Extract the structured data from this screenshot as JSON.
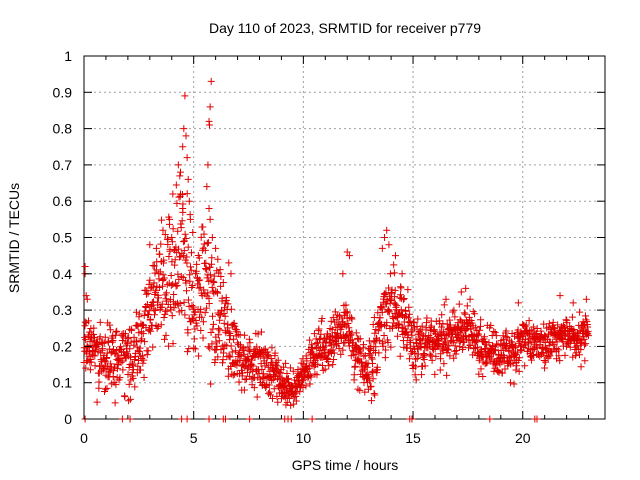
{
  "chart_data": {
    "type": "scatter",
    "title": "Day 110 of 2023, SRMTID for receiver p779",
    "xlabel": "GPS time / hours",
    "ylabel": "SRMTID / TECUs",
    "xlim": [
      0,
      23.75
    ],
    "ylim": [
      0,
      1
    ],
    "xticks": [
      0,
      5,
      10,
      15,
      20
    ],
    "yticks": [
      0,
      0.1,
      0.2,
      0.3,
      0.4,
      0.5,
      0.6,
      0.7,
      0.8,
      0.9,
      1
    ],
    "xtick_labels": [
      "0",
      "5",
      "10",
      "15",
      "20"
    ],
    "ytick_labels": [
      "0",
      "0.1",
      "0.2",
      "0.3",
      "0.4",
      "0.5",
      "0.6",
      "0.7",
      "0.8",
      "0.9",
      "1"
    ],
    "grid": true,
    "marker": "plus",
    "color": "#e00000",
    "series": [
      {
        "name": "SRMTID",
        "profile": [
          [
            0.0,
            0.22
          ],
          [
            0.5,
            0.18
          ],
          [
            1.0,
            0.15
          ],
          [
            1.5,
            0.17
          ],
          [
            2.0,
            0.16
          ],
          [
            2.5,
            0.2
          ],
          [
            3.0,
            0.3
          ],
          [
            3.5,
            0.38
          ],
          [
            4.0,
            0.4
          ],
          [
            4.5,
            0.45
          ],
          [
            5.0,
            0.32
          ],
          [
            5.5,
            0.35
          ],
          [
            6.0,
            0.3
          ],
          [
            6.5,
            0.24
          ],
          [
            7.0,
            0.18
          ],
          [
            7.5,
            0.16
          ],
          [
            8.0,
            0.15
          ],
          [
            8.5,
            0.14
          ],
          [
            9.0,
            0.1
          ],
          [
            9.5,
            0.08
          ],
          [
            10.0,
            0.12
          ],
          [
            10.5,
            0.17
          ],
          [
            11.0,
            0.2
          ],
          [
            11.5,
            0.23
          ],
          [
            12.0,
            0.26
          ],
          [
            12.5,
            0.15
          ],
          [
            13.0,
            0.12
          ],
          [
            13.5,
            0.25
          ],
          [
            14.0,
            0.32
          ],
          [
            14.5,
            0.3
          ],
          [
            15.0,
            0.2
          ],
          [
            15.5,
            0.21
          ],
          [
            16.0,
            0.22
          ],
          [
            16.5,
            0.22
          ],
          [
            17.0,
            0.24
          ],
          [
            17.5,
            0.26
          ],
          [
            18.0,
            0.2
          ],
          [
            18.5,
            0.19
          ],
          [
            19.0,
            0.18
          ],
          [
            19.5,
            0.17
          ],
          [
            20.0,
            0.22
          ],
          [
            20.5,
            0.21
          ],
          [
            21.0,
            0.2
          ],
          [
            21.5,
            0.22
          ],
          [
            22.0,
            0.22
          ],
          [
            22.5,
            0.23
          ],
          [
            23.0,
            0.23
          ]
        ],
        "spread": [
          [
            0.0,
            0.07
          ],
          [
            3.0,
            0.1
          ],
          [
            4.5,
            0.2
          ],
          [
            5.8,
            0.18
          ],
          [
            7.0,
            0.08
          ],
          [
            9.5,
            0.04
          ],
          [
            12.0,
            0.07
          ],
          [
            14.0,
            0.1
          ],
          [
            16.0,
            0.06
          ],
          [
            23.0,
            0.05
          ]
        ],
        "peaks": [
          [
            0.05,
            0.42
          ],
          [
            0.05,
            0.4
          ],
          [
            0.1,
            0.34
          ],
          [
            0.15,
            0.33
          ],
          [
            3.0,
            0.48
          ],
          [
            3.3,
            0.47
          ],
          [
            3.6,
            0.52
          ],
          [
            3.9,
            0.55
          ],
          [
            4.05,
            0.62
          ],
          [
            4.3,
            0.7
          ],
          [
            4.4,
            0.68
          ],
          [
            4.5,
            0.75
          ],
          [
            4.55,
            0.8
          ],
          [
            4.6,
            0.89
          ],
          [
            4.65,
            0.78
          ],
          [
            4.7,
            0.72
          ],
          [
            4.75,
            0.66
          ],
          [
            4.8,
            0.6
          ],
          [
            4.85,
            0.55
          ],
          [
            4.5,
            0.58
          ],
          [
            4.4,
            0.62
          ],
          [
            5.6,
            0.64
          ],
          [
            5.65,
            0.7
          ],
          [
            5.7,
            0.82
          ],
          [
            5.72,
            0.81
          ],
          [
            5.75,
            0.86
          ],
          [
            5.8,
            0.93
          ],
          [
            5.7,
            0.58
          ],
          [
            5.75,
            0.55
          ],
          [
            5.85,
            0.5
          ],
          [
            6.0,
            0.47
          ],
          [
            6.1,
            0.44
          ],
          [
            6.6,
            0.43
          ],
          [
            6.7,
            0.4
          ],
          [
            12.0,
            0.46
          ],
          [
            12.1,
            0.45
          ],
          [
            11.8,
            0.4
          ],
          [
            13.6,
            0.47
          ],
          [
            13.7,
            0.5
          ],
          [
            13.8,
            0.52
          ],
          [
            13.9,
            0.48
          ],
          [
            14.2,
            0.45
          ],
          [
            14.5,
            0.4
          ],
          [
            17.2,
            0.35
          ],
          [
            17.4,
            0.36
          ],
          [
            17.6,
            0.33
          ],
          [
            21.7,
            0.34
          ],
          [
            22.3,
            0.32
          ],
          [
            22.9,
            0.33
          ],
          [
            19.8,
            0.32
          ],
          [
            16.5,
            0.33
          ]
        ],
        "baseline_marks": [
          0.05,
          1.75,
          2.1,
          4.45,
          4.7,
          5.7,
          6.35,
          6.45,
          7.55,
          9.15,
          9.3,
          9.45,
          10.4,
          14.85,
          14.95,
          18.5,
          20.55,
          20.65
        ]
      }
    ]
  }
}
